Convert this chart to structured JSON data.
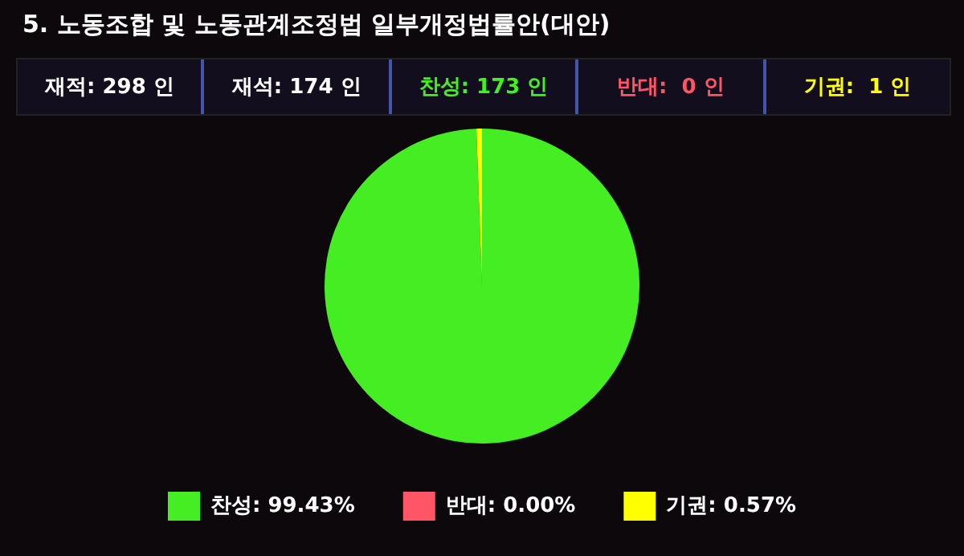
{
  "chart_data": {
    "type": "pie",
    "title": "5. 노동조합 및 노동관계조정법 일부개정법률안(대안)",
    "annotations": [
      "재적: 298 인",
      "재석: 174 인",
      "찬성: 173 인",
      "반대:  0 인",
      "기권:  1 인"
    ],
    "categories": [
      "찬성",
      "반대",
      "기권"
    ],
    "values": [
      99.43,
      0.0,
      0.57
    ],
    "value_labels": [
      "99.43%",
      "0.00%",
      "0.57%"
    ],
    "colors": [
      "#44ee22",
      "#ff5566",
      "#ffff00"
    ],
    "legend": "bottom"
  }
}
